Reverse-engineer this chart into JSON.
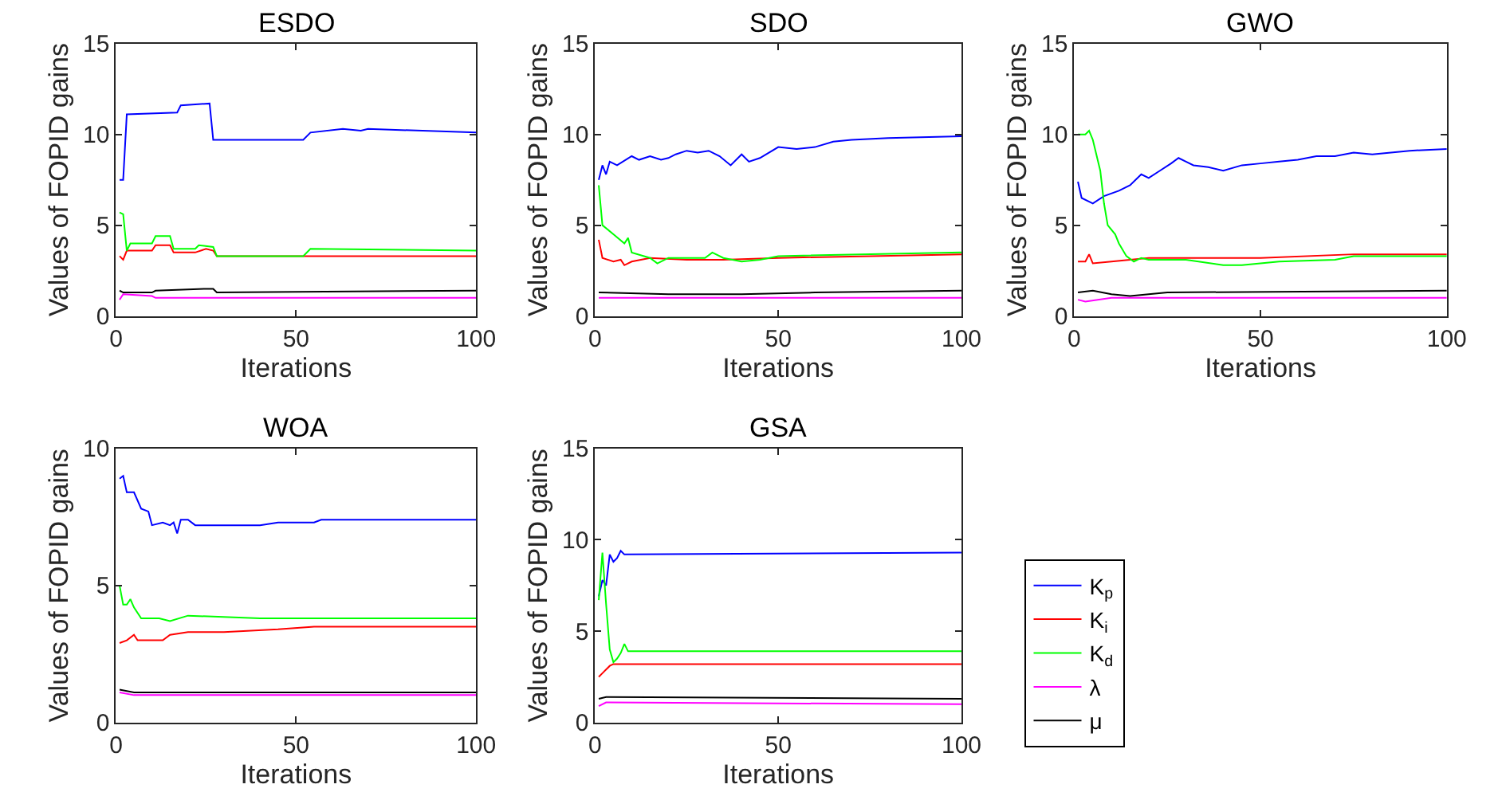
{
  "chart_data": [
    {
      "type": "line",
      "title": "ESDO",
      "xlabel": "Iterations",
      "ylabel": "Values of FOPID gains",
      "xlim": [
        0,
        100
      ],
      "xticks": [
        0,
        50,
        100
      ],
      "ylim": [
        0,
        15
      ],
      "yticks": [
        0,
        5,
        10,
        15
      ],
      "legend": false,
      "series": [
        {
          "color": "#0000ff",
          "x": [
            1,
            2,
            3,
            17,
            18,
            26,
            27,
            52,
            54,
            63,
            68,
            70,
            100
          ],
          "values": [
            7.5,
            7.5,
            11.1,
            11.2,
            11.6,
            11.7,
            9.7,
            9.7,
            10.1,
            10.3,
            10.2,
            10.3,
            10.1
          ]
        },
        {
          "color": "#ff0000",
          "x": [
            1,
            2,
            3,
            10,
            11,
            15,
            16,
            22,
            25,
            27,
            28,
            100
          ],
          "values": [
            3.3,
            3.1,
            3.6,
            3.6,
            3.9,
            3.9,
            3.5,
            3.5,
            3.7,
            3.6,
            3.3,
            3.3
          ]
        },
        {
          "color": "#00ff00",
          "x": [
            1,
            2,
            3,
            4,
            10,
            11,
            15,
            16,
            22,
            23,
            27,
            28,
            52,
            54,
            100
          ],
          "values": [
            5.7,
            5.6,
            3.6,
            4.0,
            4.0,
            4.4,
            4.4,
            3.7,
            3.7,
            3.9,
            3.8,
            3.3,
            3.3,
            3.7,
            3.6
          ]
        },
        {
          "color": "#ff00ff",
          "x": [
            1,
            2,
            10,
            11,
            100
          ],
          "values": [
            0.9,
            1.2,
            1.1,
            1.0,
            1.0
          ]
        },
        {
          "color": "#000000",
          "x": [
            1,
            2,
            10,
            11,
            25,
            27,
            28,
            100
          ],
          "values": [
            1.4,
            1.3,
            1.3,
            1.4,
            1.5,
            1.5,
            1.3,
            1.4
          ]
        }
      ]
    },
    {
      "type": "line",
      "title": "SDO",
      "xlabel": "Iterations",
      "ylabel": "Values of FOPID gains",
      "xlim": [
        0,
        100
      ],
      "xticks": [
        0,
        50,
        100
      ],
      "ylim": [
        0,
        15
      ],
      "yticks": [
        0,
        5,
        10,
        15
      ],
      "legend": false,
      "series": [
        {
          "color": "#0000ff",
          "x": [
            1,
            2,
            3,
            4,
            6,
            10,
            12,
            15,
            18,
            20,
            22,
            25,
            28,
            31,
            34,
            37,
            40,
            42,
            45,
            50,
            55,
            60,
            65,
            70,
            80,
            100
          ],
          "values": [
            7.5,
            8.3,
            7.8,
            8.5,
            8.3,
            8.8,
            8.6,
            8.8,
            8.6,
            8.7,
            8.9,
            9.1,
            9.0,
            9.1,
            8.8,
            8.3,
            8.9,
            8.5,
            8.7,
            9.3,
            9.2,
            9.3,
            9.6,
            9.7,
            9.8,
            9.9
          ]
        },
        {
          "color": "#ff0000",
          "x": [
            1,
            2,
            5,
            7,
            8,
            10,
            15,
            25,
            35,
            50,
            100
          ],
          "values": [
            4.2,
            3.2,
            3.0,
            3.1,
            2.8,
            3.0,
            3.2,
            3.1,
            3.1,
            3.2,
            3.4
          ]
        },
        {
          "color": "#00ff00",
          "x": [
            1,
            2,
            5,
            8,
            9,
            10,
            15,
            17,
            20,
            30,
            32,
            35,
            40,
            45,
            50,
            100
          ],
          "values": [
            7.2,
            5.0,
            4.5,
            4.0,
            4.3,
            3.5,
            3.2,
            2.9,
            3.2,
            3.2,
            3.5,
            3.2,
            3.0,
            3.1,
            3.3,
            3.5
          ]
        },
        {
          "color": "#ff00ff",
          "x": [
            1,
            100
          ],
          "values": [
            1.0,
            1.0
          ]
        },
        {
          "color": "#000000",
          "x": [
            1,
            20,
            40,
            60,
            100
          ],
          "values": [
            1.3,
            1.2,
            1.2,
            1.3,
            1.4
          ]
        }
      ]
    },
    {
      "type": "line",
      "title": "GWO",
      "xlabel": "Iterations",
      "ylabel": "Values of FOPID gains",
      "xlim": [
        0,
        100
      ],
      "xticks": [
        0,
        50,
        100
      ],
      "ylim": [
        0,
        15
      ],
      "yticks": [
        0,
        5,
        10,
        15
      ],
      "legend": false,
      "series": [
        {
          "color": "#0000ff",
          "x": [
            1,
            2,
            5,
            8,
            12,
            15,
            18,
            20,
            23,
            26,
            28,
            30,
            32,
            36,
            40,
            45,
            50,
            55,
            60,
            65,
            70,
            75,
            80,
            85,
            90,
            100
          ],
          "values": [
            7.4,
            6.5,
            6.2,
            6.6,
            6.9,
            7.2,
            7.8,
            7.6,
            8.0,
            8.4,
            8.7,
            8.5,
            8.3,
            8.2,
            8.0,
            8.3,
            8.4,
            8.5,
            8.6,
            8.8,
            8.8,
            9.0,
            8.9,
            9.0,
            9.1,
            9.2
          ]
        },
        {
          "color": "#ff0000",
          "x": [
            1,
            3,
            4,
            5,
            10,
            20,
            50,
            75,
            100
          ],
          "values": [
            3.0,
            3.0,
            3.4,
            2.9,
            3.0,
            3.2,
            3.2,
            3.4,
            3.4
          ]
        },
        {
          "color": "#00ff00",
          "x": [
            1,
            3,
            4,
            5,
            7,
            8,
            9,
            11,
            12,
            14,
            16,
            18,
            20,
            30,
            40,
            45,
            55,
            70,
            75,
            100
          ],
          "values": [
            10.0,
            10.0,
            10.2,
            9.7,
            8.0,
            6.2,
            5.0,
            4.5,
            4.0,
            3.3,
            3.0,
            3.2,
            3.1,
            3.1,
            2.8,
            2.8,
            3.0,
            3.1,
            3.3,
            3.3
          ]
        },
        {
          "color": "#ff00ff",
          "x": [
            1,
            3,
            10,
            100
          ],
          "values": [
            0.9,
            0.8,
            1.0,
            1.0
          ]
        },
        {
          "color": "#000000",
          "x": [
            1,
            5,
            10,
            15,
            25,
            100
          ],
          "values": [
            1.3,
            1.4,
            1.2,
            1.1,
            1.3,
            1.4
          ]
        }
      ]
    },
    {
      "type": "line",
      "title": "WOA",
      "xlabel": "Iterations",
      "ylabel": "Values of FOPID gains",
      "xlim": [
        0,
        100
      ],
      "xticks": [
        0,
        50,
        100
      ],
      "ylim": [
        0,
        10
      ],
      "yticks": [
        0,
        5,
        10
      ],
      "legend": false,
      "series": [
        {
          "color": "#0000ff",
          "x": [
            1,
            2,
            3,
            5,
            7,
            9,
            10,
            13,
            15,
            16,
            17,
            18,
            20,
            22,
            30,
            40,
            45,
            55,
            57,
            100
          ],
          "values": [
            8.9,
            9.0,
            8.4,
            8.4,
            7.8,
            7.7,
            7.2,
            7.3,
            7.2,
            7.3,
            6.9,
            7.4,
            7.4,
            7.2,
            7.2,
            7.2,
            7.3,
            7.3,
            7.4,
            7.4
          ]
        },
        {
          "color": "#ff0000",
          "x": [
            1,
            3,
            5,
            6,
            10,
            13,
            15,
            20,
            30,
            45,
            55,
            100
          ],
          "values": [
            2.9,
            3.0,
            3.2,
            3.0,
            3.0,
            3.0,
            3.2,
            3.3,
            3.3,
            3.4,
            3.5,
            3.5
          ]
        },
        {
          "color": "#00ff00",
          "x": [
            1,
            2,
            3,
            4,
            5,
            7,
            12,
            15,
            20,
            40,
            55,
            100
          ],
          "values": [
            5.0,
            4.3,
            4.3,
            4.5,
            4.2,
            3.8,
            3.8,
            3.7,
            3.9,
            3.8,
            3.8,
            3.8
          ]
        },
        {
          "color": "#ff00ff",
          "x": [
            1,
            5,
            100
          ],
          "values": [
            1.1,
            1.0,
            1.0
          ]
        },
        {
          "color": "#000000",
          "x": [
            1,
            5,
            100
          ],
          "values": [
            1.2,
            1.1,
            1.1
          ]
        }
      ]
    },
    {
      "type": "line",
      "title": "GSA",
      "xlabel": "Iterations",
      "ylabel": "Values of FOPID gains",
      "xlim": [
        0,
        100
      ],
      "xticks": [
        0,
        50,
        100
      ],
      "ylim": [
        0,
        15
      ],
      "yticks": [
        0,
        5,
        10,
        15
      ],
      "legend": "right",
      "series": [
        {
          "name": "K$_{p}$",
          "color": "#0000ff",
          "x": [
            1,
            2,
            3,
            4,
            5,
            6,
            7,
            8,
            100
          ],
          "values": [
            6.9,
            7.8,
            7.5,
            9.2,
            8.8,
            9.0,
            9.4,
            9.2,
            9.3
          ]
        },
        {
          "name": "K$_{i}$",
          "color": "#ff0000",
          "x": [
            1,
            2,
            3,
            4,
            5,
            100
          ],
          "values": [
            2.5,
            2.7,
            2.9,
            3.1,
            3.2,
            3.2
          ]
        },
        {
          "name": "K$_{d}$",
          "color": "#00ff00",
          "x": [
            1,
            2,
            3,
            4,
            5,
            6,
            7,
            8,
            9,
            100
          ],
          "values": [
            6.7,
            9.3,
            6.5,
            4.0,
            3.3,
            3.5,
            3.8,
            4.3,
            3.9,
            3.9
          ]
        },
        {
          "name": "λ",
          "color": "#ff00ff",
          "x": [
            1,
            3,
            100
          ],
          "values": [
            0.9,
            1.1,
            1.0
          ]
        },
        {
          "name": "μ",
          "color": "#000000",
          "x": [
            1,
            3,
            100
          ],
          "values": [
            1.3,
            1.4,
            1.3
          ]
        }
      ]
    }
  ]
}
